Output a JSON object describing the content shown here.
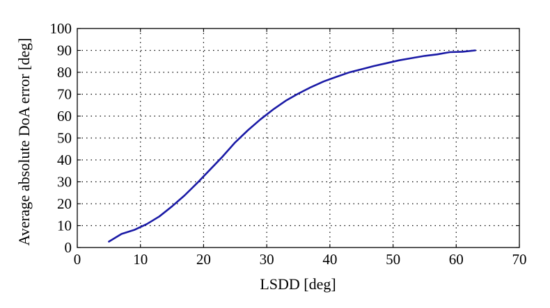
{
  "chart_data": {
    "type": "line",
    "title": "",
    "xlabel": "LSDD [deg]",
    "ylabel": "Average absolute DoA error [deg]",
    "xlim": [
      0,
      70
    ],
    "ylim": [
      0,
      100
    ],
    "x_ticks": [
      0,
      10,
      20,
      30,
      40,
      50,
      60,
      70
    ],
    "y_ticks": [
      0,
      10,
      20,
      30,
      40,
      50,
      60,
      70,
      80,
      90,
      100
    ],
    "grid": true,
    "line_color": "#1a1aa6",
    "series": [
      {
        "x": [
          5,
          7,
          9,
          11,
          13,
          15,
          17,
          19,
          21,
          23,
          25,
          27,
          29,
          31,
          33,
          35,
          37,
          39,
          41,
          43,
          45,
          47,
          49,
          51,
          53,
          55,
          57,
          59,
          61,
          63
        ],
        "values": [
          2.7,
          6.2,
          8,
          10.7,
          14.2,
          18.8,
          23.8,
          29.5,
          35.5,
          41.5,
          48,
          53.5,
          58.5,
          63,
          67,
          70.3,
          73.2,
          75.8,
          77.9,
          79.9,
          81.4,
          82.9,
          84.2,
          85.5,
          86.5,
          87.5,
          88.2,
          89.2,
          89.4,
          90
        ]
      }
    ]
  }
}
